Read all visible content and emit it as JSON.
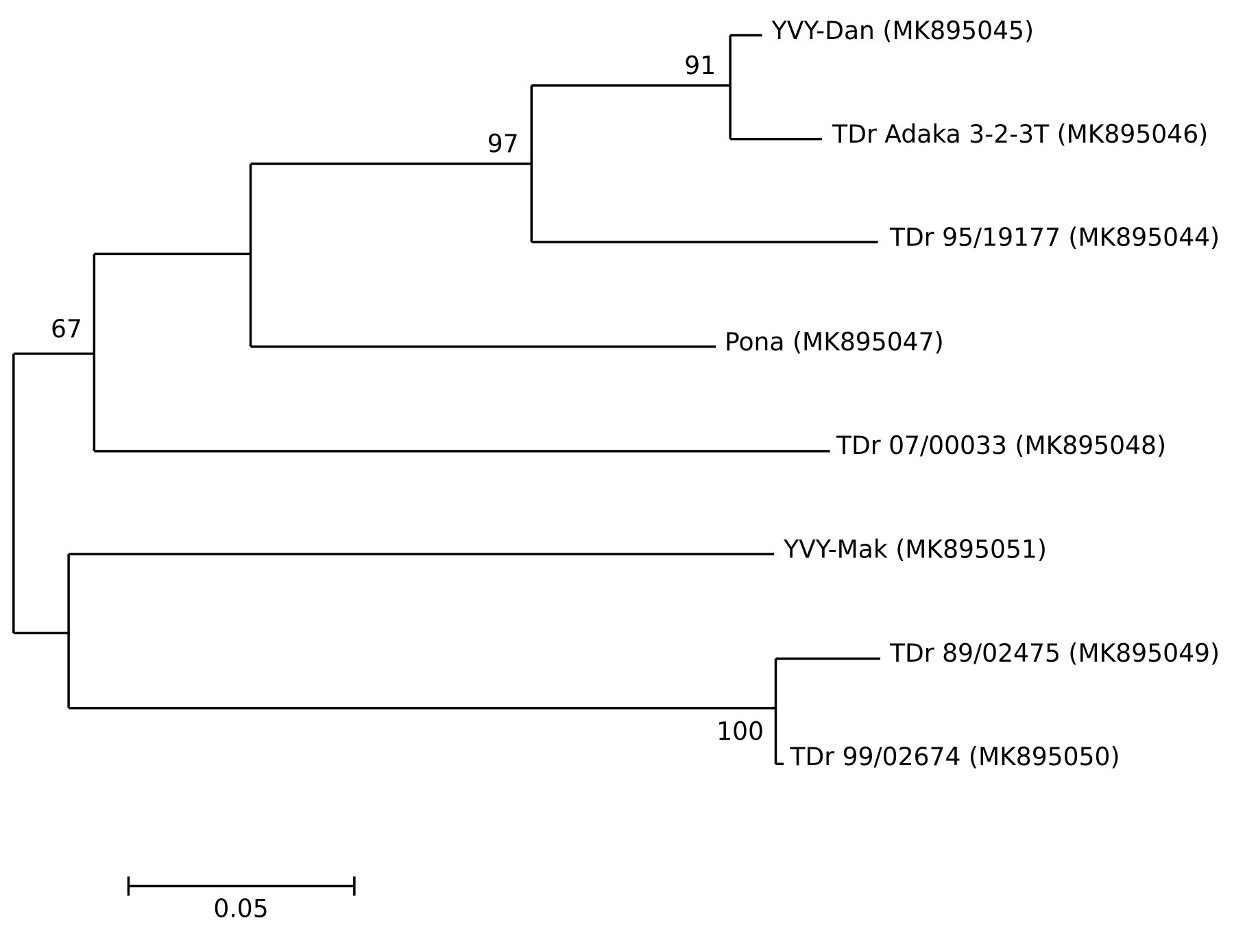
{
  "leaves": [
    "YVY-Dan (MK895045)",
    "TDr Adaka 3-2-3T (MK895046)",
    "TDr 95/19177 (MK895044)",
    "Pona (MK895047)",
    "TDr 07/00033 (MK895048)",
    "YVY-Mak (MK895051)",
    "TDr 89/02475 (MK895049)",
    "TDr 99/02674 (MK895050)"
  ],
  "bootstrap": [
    "91",
    "97",
    "67",
    "100"
  ],
  "scale_bar": {
    "label": "0.05"
  }
}
